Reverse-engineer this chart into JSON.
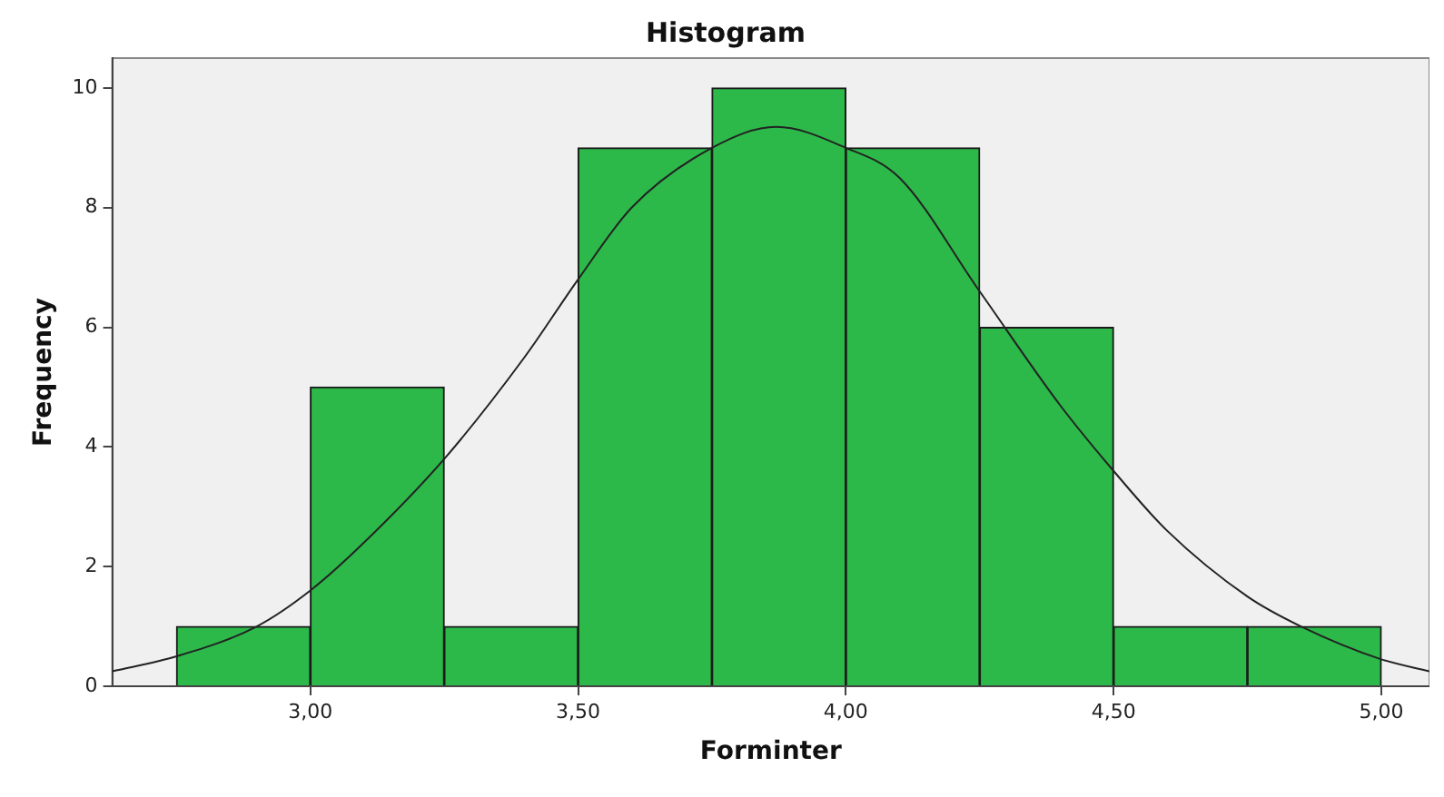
{
  "chart_data": {
    "type": "histogram",
    "title": "Histogram",
    "xlabel": "Forminter",
    "ylabel": "Frequency",
    "bins": [
      2.75,
      3.0,
      3.25,
      3.5,
      3.75,
      4.0,
      4.25,
      4.5,
      4.75,
      5.0
    ],
    "values": [
      1,
      5,
      1,
      9,
      10,
      9,
      6,
      1,
      1
    ],
    "color": "#2db84a",
    "series": [
      {
        "type": "line",
        "color": "#222222",
        "x": [
          2.63,
          2.75,
          2.9,
          3.0,
          3.1,
          3.25,
          3.4,
          3.5,
          3.6,
          3.75,
          3.87,
          4.0,
          4.1,
          4.25,
          4.4,
          4.5,
          4.6,
          4.75,
          4.85,
          5.0,
          5.09
        ],
        "values": [
          0.25,
          0.5,
          1.0,
          1.6,
          2.4,
          3.8,
          5.5,
          6.8,
          8.0,
          9.0,
          9.35,
          9.0,
          8.5,
          6.6,
          4.7,
          3.6,
          2.6,
          1.5,
          1.0,
          0.45,
          0.25
        ]
      }
    ],
    "xlim": [
      2.63,
      5.09
    ],
    "xticks": [
      {
        "value": 3,
        "label": "3,00"
      },
      {
        "value": 3.5,
        "label": "3,50"
      },
      {
        "value": 4,
        "label": "4,00"
      },
      {
        "value": 4.5,
        "label": "4,50"
      },
      {
        "value": 5,
        "label": "5,00"
      }
    ],
    "ylim": [
      0,
      10.5
    ],
    "yticks": [
      0,
      2,
      4,
      6,
      8,
      10
    ],
    "grid": false,
    "legend": false,
    "marker": "none"
  }
}
